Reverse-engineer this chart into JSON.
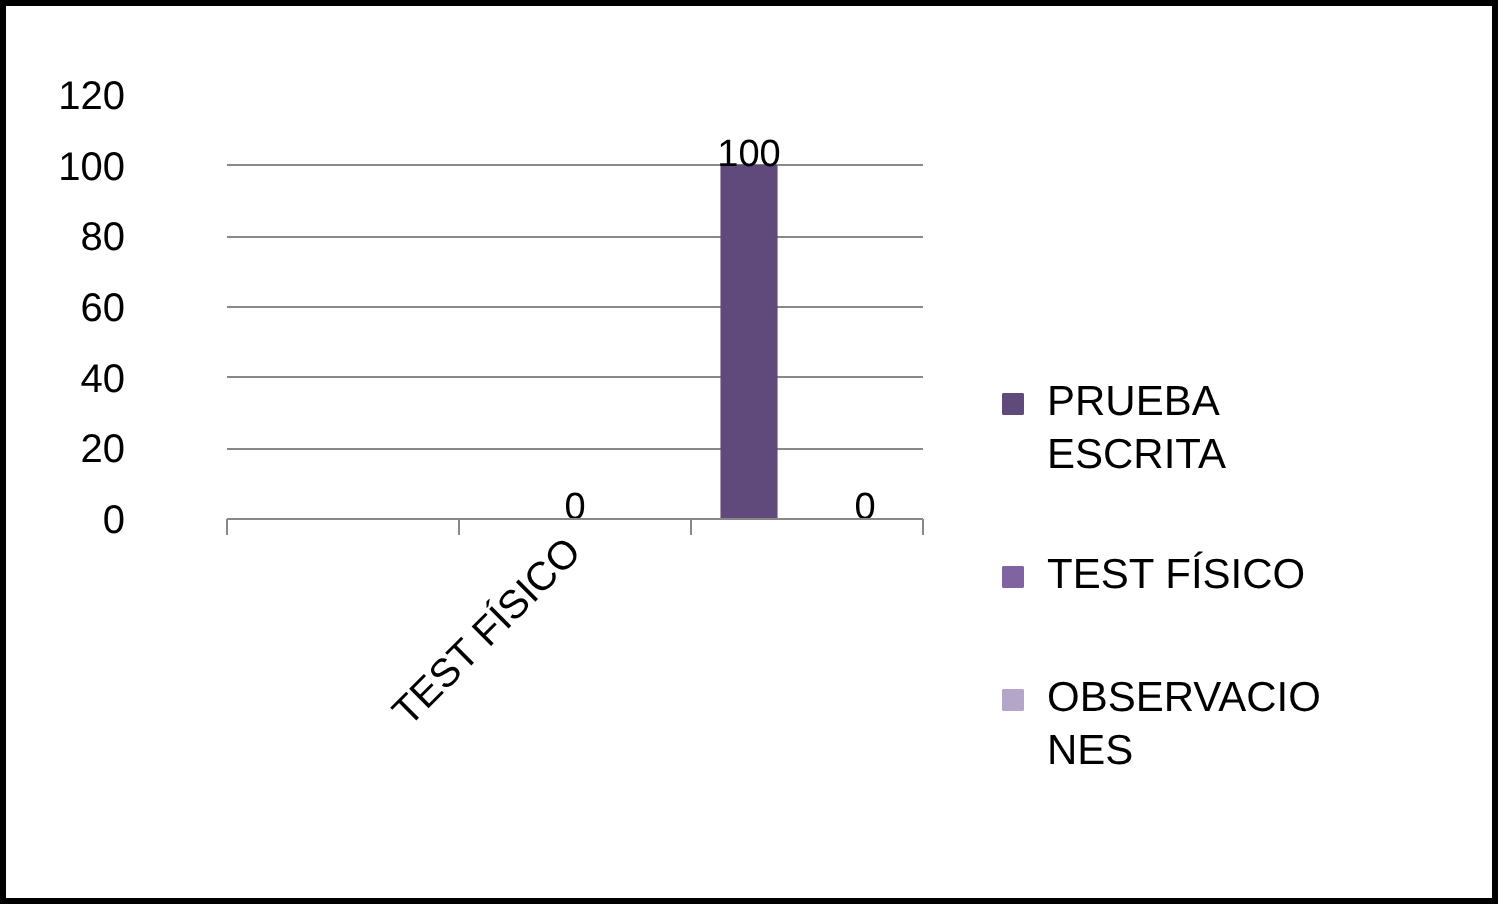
{
  "chart_data": {
    "type": "bar",
    "categories": [
      null,
      "TEST FÍSICO",
      null
    ],
    "series": [
      {
        "name": "PRUEBA ESCRITA",
        "color": "#604a7b",
        "values": [
          null,
          null,
          100
        ]
      },
      {
        "name": "TEST FÍSICO",
        "color": "#8064a2",
        "values": [
          null,
          0,
          null
        ]
      },
      {
        "name": "OBSERVACIONES",
        "color": "#b3a6c8",
        "values": [
          null,
          null,
          0
        ]
      }
    ],
    "ylim": [
      0,
      120
    ],
    "yticks": [
      0,
      20,
      40,
      60,
      80,
      100,
      120
    ],
    "grid": "y",
    "legend": "right",
    "data_labels": true
  }
}
